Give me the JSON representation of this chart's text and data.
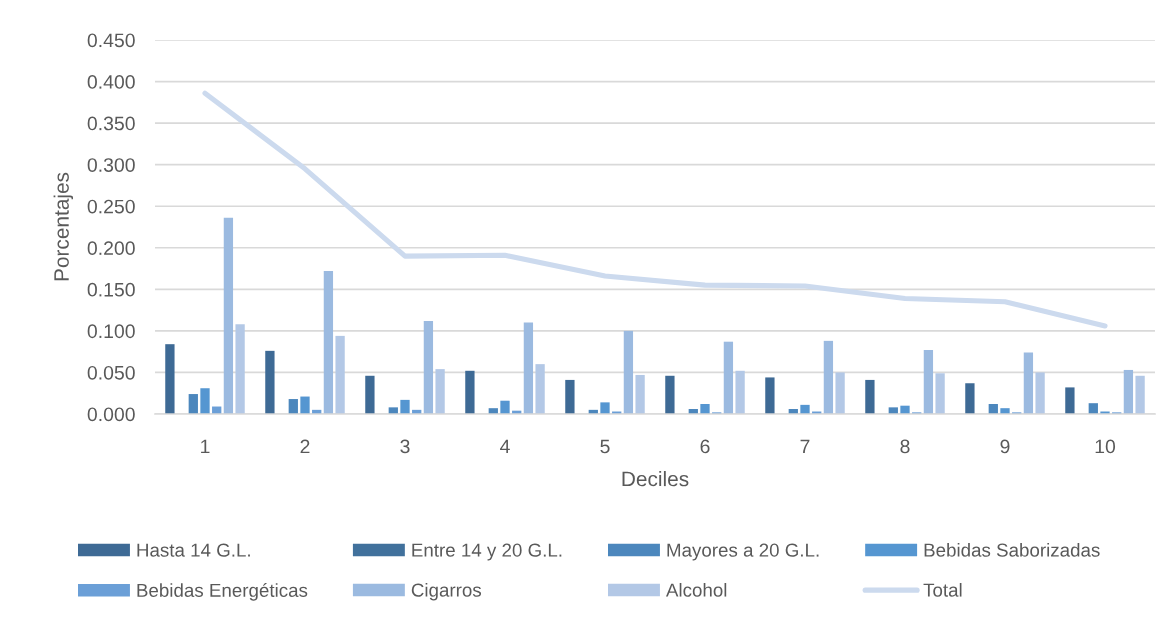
{
  "chart_data": {
    "type": "bar",
    "xlabel": "Deciles",
    "ylabel": "Porcentajes",
    "categories": [
      "1",
      "2",
      "3",
      "4",
      "5",
      "6",
      "7",
      "8",
      "9",
      "10"
    ],
    "series": [
      {
        "name": "Hasta 14 G.L.",
        "color": "#3e6a95",
        "values": [
          0.084,
          0.076,
          0.046,
          0.052,
          0.041,
          0.046,
          0.044,
          0.041,
          0.037,
          0.032
        ]
      },
      {
        "name": "Entre 14 y 20 G.L.",
        "color": "#41719c",
        "values": [
          null,
          null,
          null,
          null,
          null,
          null,
          null,
          null,
          null,
          null
        ]
      },
      {
        "name": "Mayores a 20 G.L.",
        "color": "#4c87bd",
        "values": [
          0.024,
          0.018,
          0.008,
          0.007,
          0.005,
          0.006,
          0.006,
          0.008,
          0.012,
          0.013
        ]
      },
      {
        "name": "Bebidas Saborizadas",
        "color": "#5596d1",
        "values": [
          0.031,
          0.021,
          0.017,
          0.016,
          0.014,
          0.012,
          0.011,
          0.01,
          0.007,
          0.003
        ]
      },
      {
        "name": "Bebidas Energéticas",
        "color": "#6b9fd7",
        "values": [
          0.009,
          0.005,
          0.005,
          0.004,
          0.003,
          0.002,
          0.003,
          0.002,
          0.002,
          0.002
        ]
      },
      {
        "name": "Cigarros",
        "color": "#9bbae0",
        "values": [
          0.236,
          0.172,
          0.112,
          0.11,
          0.1,
          0.087,
          0.088,
          0.077,
          0.074,
          0.053
        ]
      },
      {
        "name": "Alcohol",
        "color": "#b3c8e6",
        "values": [
          0.108,
          0.094,
          0.054,
          0.06,
          0.047,
          0.052,
          0.05,
          0.049,
          0.05,
          0.046
        ]
      },
      {
        "name": "Total",
        "type": "line",
        "color": "#ccdaee",
        "values": [
          0.386,
          0.295,
          0.19,
          0.191,
          0.166,
          0.155,
          0.154,
          0.139,
          0.135,
          0.106
        ]
      }
    ],
    "ylim": [
      0,
      0.45
    ],
    "yticks": [
      {
        "value": 0,
        "label": "0.000"
      },
      {
        "value": 0.05,
        "label": "0.050"
      },
      {
        "value": 0.1,
        "label": "0.100"
      },
      {
        "value": 0.15,
        "label": "0.150"
      },
      {
        "value": 0.2,
        "label": "0.200"
      },
      {
        "value": 0.25,
        "label": "0.250"
      },
      {
        "value": 0.3,
        "label": "0.300"
      },
      {
        "value": 0.35,
        "label": "0.350"
      },
      {
        "value": 0.4,
        "label": "0.400"
      },
      {
        "value": 0.45,
        "label": "0.450"
      }
    ],
    "grid": "y",
    "legend": "bottom"
  }
}
